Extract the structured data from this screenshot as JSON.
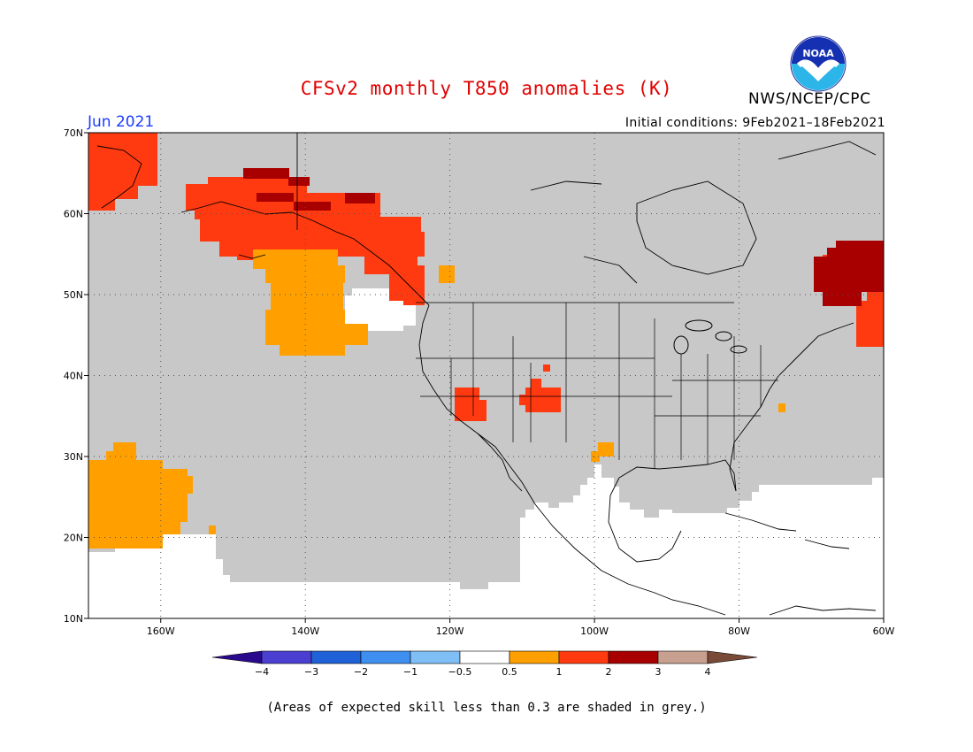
{
  "title": "CFSv2 monthly T850 anomalies (K)",
  "month": "Jun 2021",
  "initial_conditions": "Initial conditions: 9Feb2021–18Feb2021",
  "agency": "NWS/NCEP/CPC",
  "logo_text": "NOAA",
  "footnote": "(Areas of expected skill less than 0.3 are shaded in grey.)",
  "map": {
    "lon_range": [
      -170,
      -60
    ],
    "lat_range": [
      10,
      70
    ],
    "lat_ticks": [
      {
        "value": 70,
        "label": "70N"
      },
      {
        "value": 60,
        "label": "60N"
      },
      {
        "value": 50,
        "label": "50N"
      },
      {
        "value": 40,
        "label": "40N"
      },
      {
        "value": 30,
        "label": "30N"
      },
      {
        "value": 20,
        "label": "20N"
      },
      {
        "value": 10,
        "label": "10N"
      }
    ],
    "lon_ticks": [
      {
        "value": -160,
        "label": "160W"
      },
      {
        "value": -140,
        "label": "140W"
      },
      {
        "value": -120,
        "label": "120W"
      },
      {
        "value": -100,
        "label": "100W"
      },
      {
        "value": -80,
        "label": "80W"
      },
      {
        "value": -60,
        "label": "60W"
      }
    ],
    "low_skill_color": "#c8c8c8",
    "ocean_color": "#ffffff"
  },
  "colorbar": {
    "bins": [
      {
        "label": "-4",
        "color": "#2a0a8c"
      },
      {
        "label": "-3",
        "color": "#4a3fd0"
      },
      {
        "label": "-2",
        "color": "#1f62d8"
      },
      {
        "label": "-1",
        "color": "#3f8ff0"
      },
      {
        "label": "-0.5",
        "color": "#80bff5"
      },
      {
        "label": "0.5",
        "color": "#ffffff"
      },
      {
        "label": "1",
        "color": "#ffa000"
      },
      {
        "label": "2",
        "color": "#ff3a10"
      },
      {
        "label": "3",
        "color": "#a80000"
      },
      {
        "label": "4",
        "color": "#c8a090"
      },
      {
        "label": "",
        "color": "#7a4a38"
      }
    ],
    "tick_labels": [
      "−4",
      "−3",
      "−2",
      "−1",
      "−0.5",
      "0.5",
      "1",
      "2",
      "3",
      "4"
    ]
  },
  "legend_colors": {
    "c05": "#ffa000",
    "c1": "#ff3a10",
    "c2": "#a80000"
  }
}
